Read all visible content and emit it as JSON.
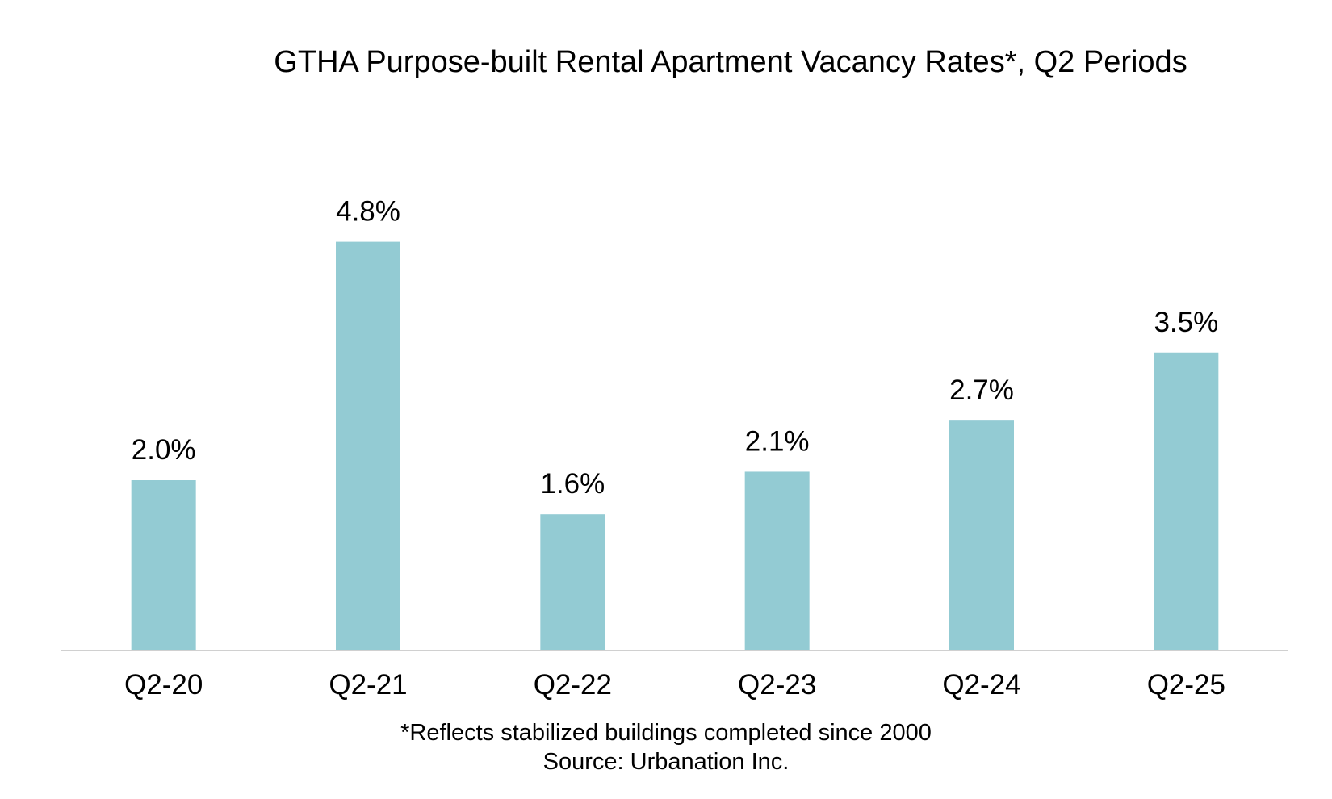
{
  "chart_data": {
    "type": "bar",
    "title": "GTHA Purpose-built Rental Apartment Vacancy Rates*, Q2 Periods",
    "categories": [
      "Q2-20",
      "Q2-21",
      "Q2-22",
      "Q2-23",
      "Q2-24",
      "Q2-25"
    ],
    "values": [
      2.0,
      4.8,
      1.6,
      2.1,
      2.7,
      3.5
    ],
    "data_labels": [
      "2.0%",
      "4.8%",
      "1.6%",
      "2.1%",
      "2.7%",
      "3.5%"
    ],
    "xlabel": "",
    "ylabel": "",
    "ylim": [
      0,
      6
    ],
    "y_axis_visible": false,
    "grid": false,
    "legend": "none",
    "footnote": "*Reflects stabilized buildings completed since 2000",
    "source": "Source: Urbanation Inc.",
    "colors": {
      "bar": "#93cbd3",
      "axis_line": "#d0d0d0",
      "text": "#000000",
      "background": "#ffffff"
    }
  }
}
